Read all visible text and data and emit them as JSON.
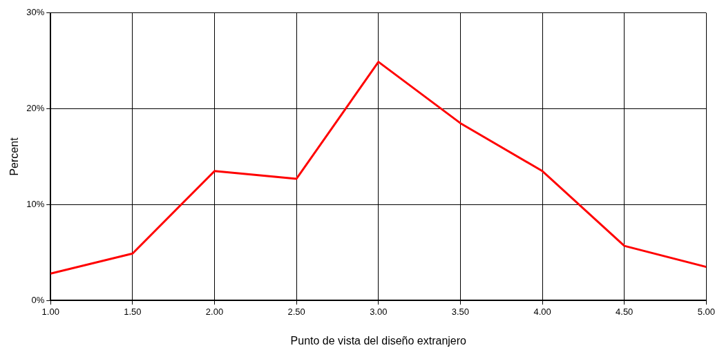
{
  "chart_data": {
    "type": "line",
    "xlabel": "Punto de vista del diseño extranjero",
    "ylabel": "Percent",
    "x": [
      1,
      1.5,
      2,
      2.5,
      3,
      3.5,
      4,
      4.5,
      5
    ],
    "series": [
      {
        "color": "#ff0000",
        "values": [
          2.8,
          4.9,
          13.5,
          12.7,
          24.9,
          18.5,
          13.5,
          5.7,
          3.5
        ]
      }
    ],
    "xlim": [
      1,
      5
    ],
    "xticks": [
      {
        "value": 1,
        "label": "1.00"
      },
      {
        "value": 1.5,
        "label": "1.50"
      },
      {
        "value": 2,
        "label": "2.00"
      },
      {
        "value": 2.5,
        "label": "2.50"
      },
      {
        "value": 3,
        "label": "3.00"
      },
      {
        "value": 3.5,
        "label": "3.50"
      },
      {
        "value": 4,
        "label": "4.00"
      },
      {
        "value": 4.5,
        "label": "4.50"
      },
      {
        "value": 5,
        "label": "5.00"
      }
    ],
    "ylim": [
      0,
      30
    ],
    "yticks": [
      {
        "value": 0,
        "label": "0%"
      },
      {
        "value": 10,
        "label": "10%"
      },
      {
        "value": 20,
        "label": "20%"
      },
      {
        "value": 30,
        "label": "30%"
      }
    ],
    "grid": true,
    "marker": "none",
    "line_style": "solid"
  }
}
